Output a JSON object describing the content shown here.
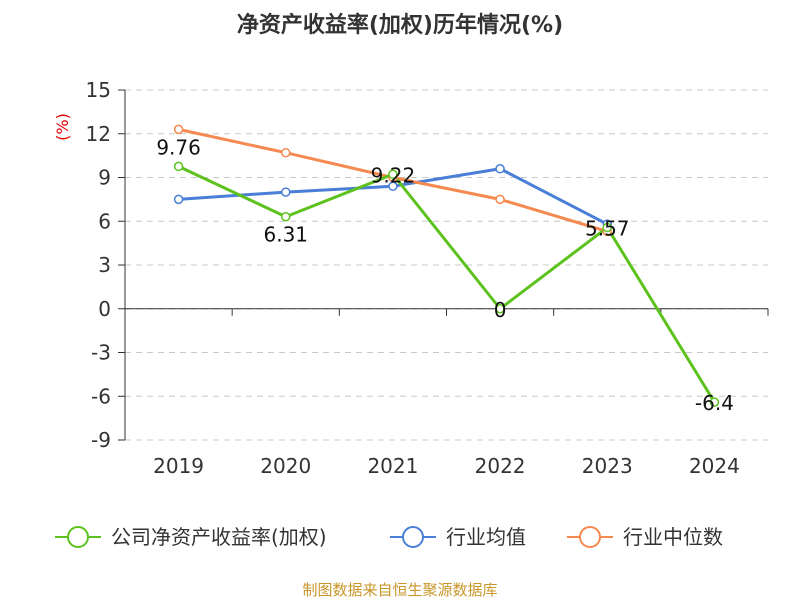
{
  "chart_data": {
    "type": "line",
    "title": "净资产收益率(加权)历年情况(%)",
    "ylabel": "(%)",
    "xlabel": "",
    "categories": [
      "2019",
      "2020",
      "2021",
      "2022",
      "2023",
      "2024"
    ],
    "y_ticks": [
      "15",
      "12",
      "9",
      "6",
      "3",
      "0",
      "-3",
      "-6",
      "-9"
    ],
    "ylim": [
      -9,
      15
    ],
    "grid": true,
    "legend_position": "bottom",
    "series": [
      {
        "name": "公司净资产收益率(加权)",
        "color": "#5dc21e",
        "values": [
          9.76,
          6.31,
          9.22,
          0,
          5.57,
          -6.4
        ],
        "labels": [
          "9.76",
          "6.31",
          "9.22",
          "0",
          "5.57",
          "-6.4"
        ]
      },
      {
        "name": "行业均值",
        "color": "#4a7fd8",
        "values": [
          7.5,
          8.0,
          8.4,
          9.6,
          5.8,
          null
        ]
      },
      {
        "name": "行业中位数",
        "color": "#f5894f",
        "values": [
          12.3,
          10.7,
          9.0,
          7.5,
          5.3,
          null
        ]
      }
    ]
  },
  "footer": {
    "source": "制图数据来自恒生聚源数据库"
  }
}
